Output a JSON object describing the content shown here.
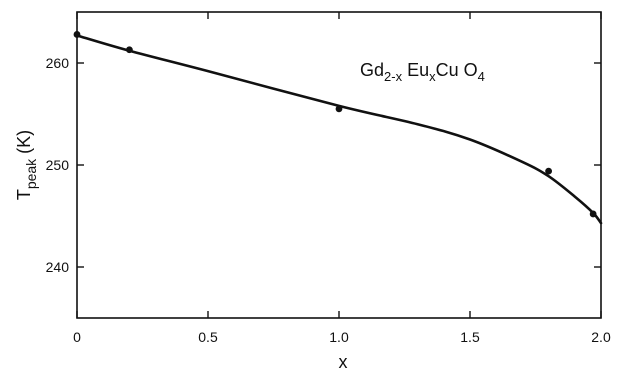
{
  "chart_data": {
    "type": "scatter",
    "title": "",
    "annotation": {
      "parts": [
        {
          "text": "Gd",
          "sub": false
        },
        {
          "text": "2-x",
          "sub": true
        },
        {
          "text": " Eu",
          "sub": false
        },
        {
          "text": "x",
          "sub": true
        },
        {
          "text": "Cu O",
          "sub": false
        },
        {
          "text": "4",
          "sub": true
        }
      ]
    },
    "xlabel": "x",
    "ylabel": {
      "main": "T",
      "sub": "peak",
      "unit": " (K)"
    },
    "xlim": [
      0,
      2.0
    ],
    "ylim": [
      235,
      265
    ],
    "xticks": [
      {
        "value": 0,
        "label": "0"
      },
      {
        "value": 0.5,
        "label": "0.5"
      },
      {
        "value": 1.0,
        "label": "1.0"
      },
      {
        "value": 1.5,
        "label": "1.5"
      },
      {
        "value": 2.0,
        "label": "2.0"
      }
    ],
    "yticks": [
      {
        "value": 240,
        "label": "240"
      },
      {
        "value": 250,
        "label": "250"
      },
      {
        "value": 260,
        "label": "260"
      }
    ],
    "grid": false,
    "series": [
      {
        "kind": "points",
        "x": [
          0.0,
          0.2,
          1.0,
          1.8,
          1.97
        ],
        "y": [
          262.8,
          261.3,
          255.5,
          249.4,
          245.2
        ]
      },
      {
        "kind": "line",
        "x": [
          0.0,
          0.2,
          0.5,
          1.0,
          1.3,
          1.5,
          1.7,
          1.8,
          1.9,
          1.97,
          2.0
        ],
        "y": [
          262.7,
          261.2,
          259.2,
          255.8,
          254.0,
          252.5,
          250.3,
          248.9,
          246.9,
          245.3,
          244.3
        ]
      }
    ]
  }
}
